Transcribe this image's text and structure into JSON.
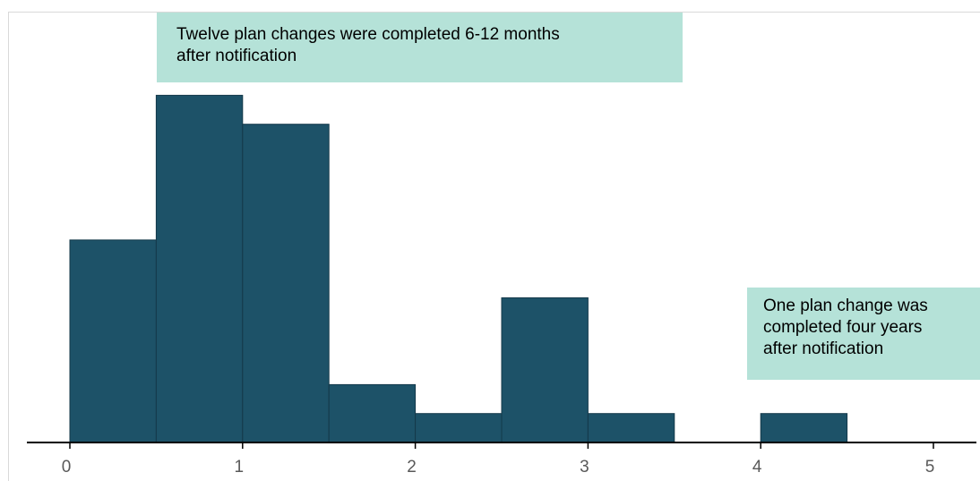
{
  "chart_data": {
    "type": "bar",
    "subtype": "histogram",
    "bin_width": 0.5,
    "bins": [
      {
        "x0": 0.0,
        "x1": 0.5,
        "count": 7
      },
      {
        "x0": 0.5,
        "x1": 1.0,
        "count": 12
      },
      {
        "x0": 1.0,
        "x1": 1.5,
        "count": 11
      },
      {
        "x0": 1.5,
        "x1": 2.0,
        "count": 2
      },
      {
        "x0": 2.0,
        "x1": 2.5,
        "count": 1
      },
      {
        "x0": 2.5,
        "x1": 3.0,
        "count": 5
      },
      {
        "x0": 3.0,
        "x1": 3.5,
        "count": 1
      },
      {
        "x0": 3.5,
        "x1": 4.0,
        "count": 0
      },
      {
        "x0": 4.0,
        "x1": 4.5,
        "count": 1
      },
      {
        "x0": 4.5,
        "x1": 5.0,
        "count": 0
      }
    ],
    "xlim": [
      0,
      5
    ],
    "ylim": [
      0,
      12
    ],
    "x_ticks": [
      "0",
      "1",
      "2",
      "3",
      "4",
      "5"
    ],
    "title": "",
    "xlabel": "",
    "ylabel": "",
    "grid": false,
    "bar_color": "#1d5268",
    "bar_edge_color": "#14394a",
    "annotations": [
      {
        "lines": [
          "Twelve plan changes were completed 6-12 months",
          "after notification"
        ],
        "position": "top-left"
      },
      {
        "lines": [
          "One plan change was",
          "completed four years",
          "after notification"
        ],
        "position": "right"
      }
    ],
    "annotation_color": "#b5e2d8"
  }
}
